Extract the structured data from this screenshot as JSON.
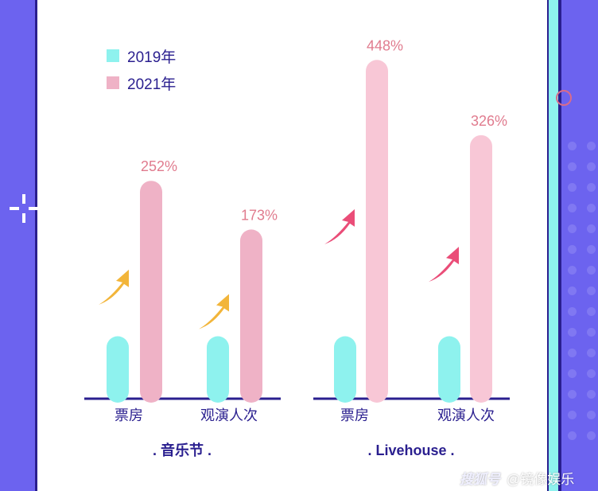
{
  "colors": {
    "y2019": "#8ef2ee",
    "y2021_group1": "#efb2c6",
    "y2021_group2": "#f8c7d6",
    "arrow_gold": "#f2b53a",
    "arrow_pink": "#ea4d78",
    "axis": "#2a1f8f",
    "background": "#6c63ef"
  },
  "watermark": {
    "logo": "搜狐号",
    "text": "@镜像娱乐"
  },
  "chart_data": {
    "type": "bar",
    "legend": {
      "placement": "top-left",
      "entries": [
        "2019年",
        "2021年"
      ]
    },
    "grid": false,
    "groups": [
      {
        "name": ". 音乐节 .",
        "categories": [
          "票房",
          "观演人次"
        ],
        "series": [
          {
            "name": "2019年",
            "values": [
              100,
              100
            ]
          },
          {
            "name": "2021年",
            "values": [
              352,
              273
            ]
          }
        ],
        "growth_labels": [
          "252%",
          "173%"
        ]
      },
      {
        "name": ". Livehouse .",
        "categories": [
          "票房",
          "观演人次"
        ],
        "series": [
          {
            "name": "2019年",
            "values": [
              100,
              100
            ]
          },
          {
            "name": "2021年",
            "values": [
              548,
              426
            ]
          }
        ],
        "growth_labels": [
          "448%",
          "326%"
        ]
      }
    ]
  }
}
